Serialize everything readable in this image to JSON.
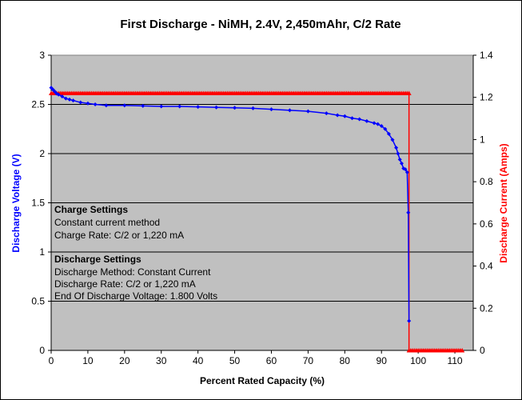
{
  "chart_data": {
    "type": "line",
    "title": "First Discharge - NiMH, 2.4V, 2,450mAhr, C/2 Rate",
    "xlabel": "Percent Rated Capacity (%)",
    "ylabel_left": "Discharge Voltage (V)",
    "ylabel_right": "Discharge Current (Amps)",
    "xlim": [
      0,
      115
    ],
    "ylim_left": [
      0,
      3
    ],
    "ylim_right": [
      0,
      1.4
    ],
    "x_ticks": [
      "0",
      "10",
      "20",
      "30",
      "40",
      "50",
      "60",
      "70",
      "80",
      "90",
      "100",
      "110"
    ],
    "y_ticks_left": [
      "0",
      "0.5",
      "1",
      "1.5",
      "2",
      "2.5",
      "3"
    ],
    "y_ticks_right": [
      "0",
      "0.2",
      "0.4",
      "0.6",
      "0.8",
      "1",
      "1.2",
      "1.4"
    ],
    "grid": "horizontal",
    "plot_background": "#c0c0c0",
    "series": [
      {
        "color": "#0000ff",
        "axis": "left",
        "marker": "diamond",
        "x": [
          0,
          0.5,
          1,
          1.5,
          2,
          3,
          4,
          5,
          6,
          8,
          10,
          12,
          15,
          20,
          25,
          30,
          35,
          40,
          45,
          50,
          55,
          60,
          65,
          70,
          75,
          78,
          80,
          82,
          84,
          86,
          88,
          89,
          90,
          91,
          92,
          93,
          94,
          94.5,
          95,
          95.5,
          96,
          96.5,
          97,
          97.3,
          97.5
        ],
        "y": [
          2.67,
          2.65,
          2.63,
          2.61,
          2.6,
          2.58,
          2.56,
          2.55,
          2.54,
          2.52,
          2.51,
          2.5,
          2.49,
          2.49,
          2.485,
          2.48,
          2.48,
          2.475,
          2.47,
          2.465,
          2.46,
          2.45,
          2.44,
          2.43,
          2.41,
          2.39,
          2.38,
          2.36,
          2.35,
          2.33,
          2.31,
          2.3,
          2.28,
          2.25,
          2.2,
          2.14,
          2.06,
          2.0,
          1.94,
          1.9,
          1.85,
          1.84,
          1.81,
          1.4,
          0.3
        ]
      },
      {
        "color": "#ff0000",
        "axis": "right",
        "marker": "triangle",
        "x_step": 0.5,
        "segments": [
          {
            "x_start": 0,
            "x_end": 97.5,
            "value": 1.22
          },
          {
            "x_start": 97.5,
            "x_end": 112,
            "value": 0
          }
        ]
      }
    ]
  },
  "annotations": {
    "charge_heading": "Charge Settings",
    "charge_line1": "Constant current method",
    "charge_line2": "Charge Rate: C/2 or 1,220 mA",
    "discharge_heading": "Discharge Settings",
    "discharge_line1": "Discharge Method: Constant Current",
    "discharge_line2": "Discharge Rate: C/2 or 1,220 mA",
    "discharge_line3": "End Of Discharge Voltage: 1.800 Volts"
  },
  "colors": {
    "left_axis_label": "#0000ff",
    "right_axis_label": "#ff0000"
  }
}
